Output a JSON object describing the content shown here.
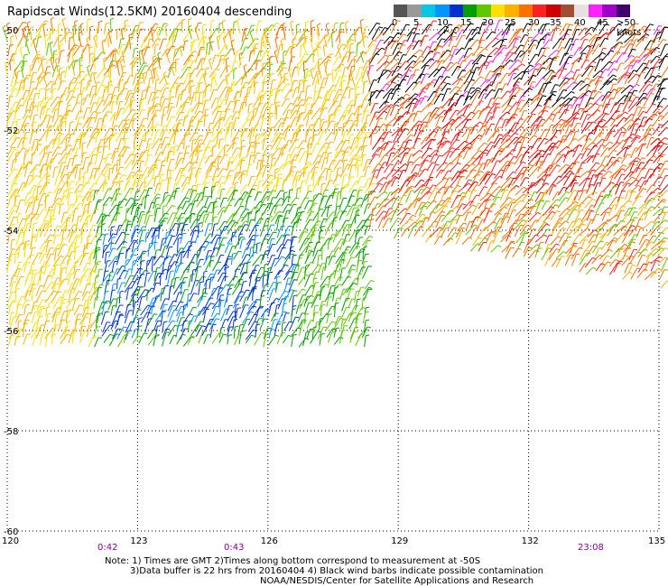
{
  "title": "Rapidscat Winds(12.5KM) 20160404 descending",
  "legend": {
    "colors": [
      "#555555",
      "#999999",
      "#00c8e6",
      "#0096ff",
      "#0030d0",
      "#00a000",
      "#60c800",
      "#ffe000",
      "#ffb000",
      "#ff7000",
      "#ff2020",
      "#d00000",
      "#a05030",
      "#e8e0e0",
      "#ff20ff",
      "#a000c8",
      "#400070"
    ],
    "labels": [
      "0",
      "5",
      "10",
      "15",
      "20",
      "25",
      "30",
      "35",
      "40",
      "45",
      ">50 knots"
    ]
  },
  "lat_labels": [
    "-50",
    "-52",
    "-54",
    "-56",
    "-58",
    "-60"
  ],
  "lon_labels": [
    "120",
    "123",
    "126",
    "129",
    "132",
    "135"
  ],
  "times": [
    "0:42",
    "0:43",
    "23:08"
  ],
  "notes": {
    "line1": "Note: 1) Times are GMT 2)Times along bottom correspond to measurement at -50S",
    "line2": "3)Data buffer is 22 hrs from 20160404 4) Black wind barbs indicate possible contamination",
    "line3": "NOAA/NESDIS/Center for Satellite Applications and Research"
  }
}
